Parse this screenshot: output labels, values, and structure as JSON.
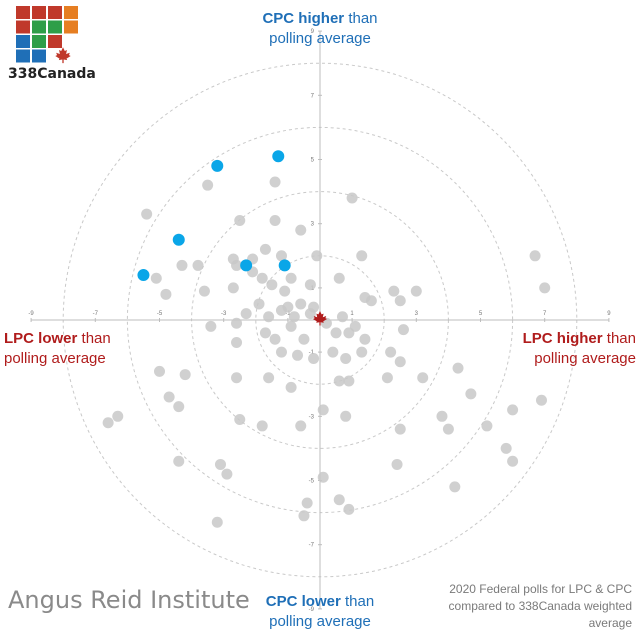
{
  "labels": {
    "top_strong": "CPC higher",
    "top_rest": " than",
    "top_line2": "polling average",
    "bottom_strong": "CPC lower",
    "bottom_rest": " than",
    "bottom_line2": "polling average",
    "left_strong": "LPC lower",
    "left_rest": " than",
    "left_line2": "polling average",
    "right_strong": "LPC higher",
    "right_rest": " than",
    "right_line2": "polling average"
  },
  "pollster": "Angus Reid Institute",
  "note": "2020 Federal polls for LPC & CPC compared to 338Canada weighted average",
  "logo_text": "338Canada",
  "colors": {
    "highlight": "#0aa6e8",
    "other": "#c8c8c8",
    "cpc": "#1f6fb7",
    "lpc": "#b01c1c",
    "logo_squares": [
      "#c0392b",
      "#c0392b",
      "#c0392b",
      "#e67e22",
      "#c0392b",
      "#2e9e48",
      "#2e9e48",
      "#e67e22",
      "#1f6fb7",
      "#2e9e48",
      "#c0392b",
      "#ffffff",
      "#1f6fb7",
      "#1f6fb7",
      "#ffffff",
      "#ffffff"
    ]
  },
  "chart_data": {
    "type": "scatter",
    "xlim": [
      -9,
      9
    ],
    "ylim": [
      -9,
      9
    ],
    "ticks": [
      -9,
      -7,
      -5,
      -3,
      -1,
      1,
      3,
      5,
      7,
      9
    ],
    "rings": [
      2,
      4,
      6,
      8
    ],
    "center_icon": "maple-leaf-icon",
    "series": [
      {
        "name": "Angus Reid Institute",
        "points": [
          [
            -1.3,
            5.1
          ],
          [
            -3.2,
            4.8
          ],
          [
            -4.4,
            2.5
          ],
          [
            -2.3,
            1.7
          ],
          [
            -1.1,
            1.7
          ],
          [
            -5.5,
            1.4
          ]
        ]
      },
      {
        "points": [
          [
            -1.4,
            4.3
          ],
          [
            -3.5,
            4.2
          ],
          [
            1.0,
            3.8
          ],
          [
            -5.4,
            3.3
          ],
          [
            -2.5,
            3.1
          ],
          [
            -1.4,
            3.1
          ],
          [
            -0.6,
            2.8
          ],
          [
            -5.1,
            1.3
          ],
          [
            -4.3,
            1.7
          ],
          [
            -3.8,
            1.7
          ],
          [
            -2.7,
            1.9
          ],
          [
            -2.1,
            1.9
          ],
          [
            -1.7,
            2.2
          ],
          [
            -1.2,
            2.0
          ],
          [
            -0.9,
            1.3
          ],
          [
            -0.1,
            2.0
          ],
          [
            1.3,
            2.0
          ],
          [
            -2.6,
            1.7
          ],
          [
            -2.1,
            1.5
          ],
          [
            -1.8,
            1.3
          ],
          [
            -1.5,
            1.1
          ],
          [
            -1.1,
            0.9
          ],
          [
            -0.3,
            1.1
          ],
          [
            0.6,
            1.3
          ],
          [
            1.4,
            0.7
          ],
          [
            1.6,
            0.6
          ],
          [
            2.3,
            0.9
          ],
          [
            3.0,
            0.9
          ],
          [
            2.5,
            0.6
          ],
          [
            -4.8,
            0.8
          ],
          [
            -3.6,
            0.9
          ],
          [
            -2.7,
            1.0
          ],
          [
            -1.9,
            0.5
          ],
          [
            -1.0,
            0.4
          ],
          [
            -0.6,
            0.5
          ],
          [
            -0.2,
            0.4
          ],
          [
            -2.3,
            0.2
          ],
          [
            -1.6,
            0.1
          ],
          [
            -1.2,
            0.3
          ],
          [
            -0.8,
            0.1
          ],
          [
            -0.3,
            0.2
          ],
          [
            0.2,
            -0.1
          ],
          [
            0.7,
            0.1
          ],
          [
            1.1,
            -0.2
          ],
          [
            -3.4,
            -0.2
          ],
          [
            -2.6,
            -0.7
          ],
          [
            -1.4,
            -0.6
          ],
          [
            -0.9,
            -0.2
          ],
          [
            -0.5,
            -0.6
          ],
          [
            0.5,
            -0.4
          ],
          [
            0.9,
            -0.4
          ],
          [
            1.4,
            -0.6
          ],
          [
            2.6,
            -0.3
          ],
          [
            1.3,
            -1.0
          ],
          [
            -2.6,
            -0.1
          ],
          [
            -1.7,
            -0.4
          ],
          [
            -1.2,
            -1.0
          ],
          [
            -0.7,
            -1.1
          ],
          [
            -0.2,
            -1.2
          ],
          [
            0.4,
            -1.0
          ],
          [
            0.8,
            -1.2
          ],
          [
            2.2,
            -1.0
          ],
          [
            2.5,
            -1.3
          ],
          [
            -5.0,
            -1.6
          ],
          [
            -4.2,
            -1.7
          ],
          [
            -2.6,
            -1.8
          ],
          [
            -1.6,
            -1.8
          ],
          [
            -0.9,
            -2.1
          ],
          [
            0.6,
            -1.9
          ],
          [
            0.9,
            -1.9
          ],
          [
            2.1,
            -1.8
          ],
          [
            3.2,
            -1.8
          ],
          [
            4.3,
            -1.5
          ],
          [
            4.7,
            -2.3
          ],
          [
            -4.7,
            -2.4
          ],
          [
            -4.4,
            -2.7
          ],
          [
            -6.3,
            -3.0
          ],
          [
            -2.5,
            -3.1
          ],
          [
            -1.8,
            -3.3
          ],
          [
            -0.6,
            -3.3
          ],
          [
            0.1,
            -2.8
          ],
          [
            0.8,
            -3.0
          ],
          [
            2.5,
            -3.4
          ],
          [
            3.8,
            -3.0
          ],
          [
            4.0,
            -3.4
          ],
          [
            5.2,
            -3.3
          ],
          [
            6.0,
            -2.8
          ],
          [
            6.9,
            -2.5
          ],
          [
            -3.1,
            -4.5
          ],
          [
            -4.4,
            -4.4
          ],
          [
            -2.9,
            -4.8
          ],
          [
            0.1,
            -4.9
          ],
          [
            -0.4,
            -5.7
          ],
          [
            0.6,
            -5.6
          ],
          [
            0.9,
            -5.9
          ],
          [
            -0.5,
            -6.1
          ],
          [
            -3.2,
            -6.3
          ],
          [
            2.4,
            -4.5
          ],
          [
            4.2,
            -5.2
          ],
          [
            6.0,
            -4.4
          ],
          [
            5.8,
            -4.0
          ],
          [
            -6.6,
            -3.2
          ],
          [
            6.7,
            2.0
          ],
          [
            7.0,
            1.0
          ]
        ]
      }
    ]
  }
}
